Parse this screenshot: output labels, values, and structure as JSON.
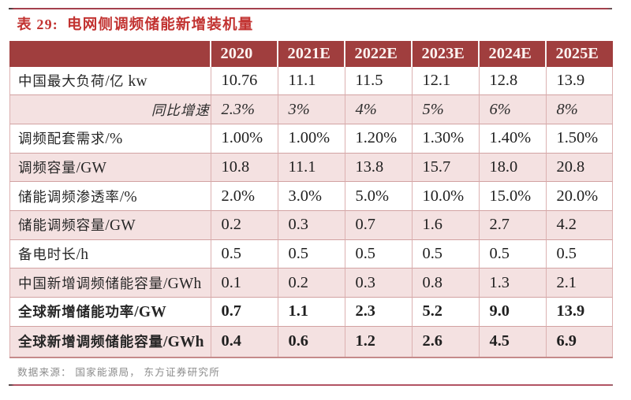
{
  "title": {
    "prefix": "表 29:",
    "text": "电网侧调频储能新增装机量"
  },
  "table": {
    "columns": [
      "",
      "2020",
      "2021E",
      "2022E",
      "2023E",
      "2024E",
      "2025E"
    ],
    "rows": [
      {
        "label": "中国最大负荷/亿 kw",
        "values": [
          "10.76",
          "11.1",
          "11.5",
          "12.1",
          "12.8",
          "13.9"
        ]
      },
      {
        "label": "同比增速",
        "values": [
          "2.3%",
          "3%",
          "4%",
          "5%",
          "6%",
          "8%"
        ],
        "italic": true
      },
      {
        "label": "调频配套需求/%",
        "values": [
          "1.00%",
          "1.00%",
          "1.20%",
          "1.30%",
          "1.40%",
          "1.50%"
        ]
      },
      {
        "label": "调频容量/GW",
        "values": [
          "10.8",
          "11.1",
          "13.8",
          "15.7",
          "18.0",
          "20.8"
        ]
      },
      {
        "label": "储能调频渗透率/%",
        "values": [
          "2.0%",
          "3.0%",
          "5.0%",
          "10.0%",
          "15.0%",
          "20.0%"
        ]
      },
      {
        "label": "储能调频容量/GW",
        "values": [
          "0.2",
          "0.3",
          "0.7",
          "1.6",
          "2.7",
          "4.2"
        ]
      },
      {
        "label": "备电时长/h",
        "values": [
          "0.5",
          "0.5",
          "0.5",
          "0.5",
          "0.5",
          "0.5"
        ]
      },
      {
        "label": "中国新增调频储能容量/GWh",
        "values": [
          "0.1",
          "0.2",
          "0.3",
          "0.8",
          "1.3",
          "2.1"
        ]
      },
      {
        "label": "全球新增储能功率/GW",
        "values": [
          "0.7",
          "1.1",
          "2.3",
          "5.2",
          "9.0",
          "13.9"
        ],
        "bold": true
      },
      {
        "label": "全球新增调频储能容量/GWh",
        "values": [
          "0.4",
          "0.6",
          "1.2",
          "2.6",
          "4.5",
          "6.9"
        ],
        "bold": true
      }
    ]
  },
  "source_note": "数据来源： 国家能源局， 东方证券研究所",
  "colors": {
    "header_bg": "#a03e3e",
    "tint_row_bg": "#f4e1e1",
    "title_red": "#c23331",
    "top_rule": "#a4414d",
    "bottom_rule": "#b25363",
    "grid_line": "#d2a2a2",
    "source_gray": "#8c8c8c"
  }
}
